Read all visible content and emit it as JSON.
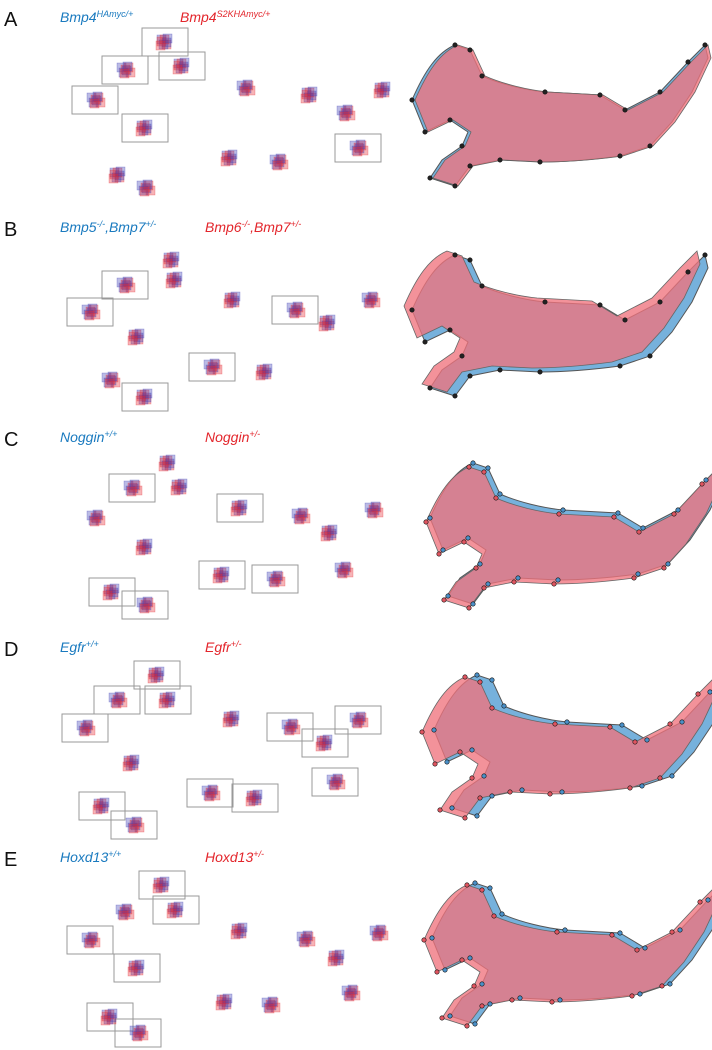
{
  "panels": [
    {
      "letter": "A",
      "blue_label": [
        {
          "text": "Bmp4",
          "sup": false
        },
        {
          "text": "HAmyc/+",
          "sup": true
        }
      ],
      "red_label": [
        {
          "text": "Bmp4",
          "sup": false
        },
        {
          "text": "S2KHAmyc/+",
          "sup": true
        }
      ]
    },
    {
      "letter": "B",
      "blue_label": [
        {
          "text": "Bmp5",
          "sup": false
        },
        {
          "text": "-/-",
          "sup": true
        },
        {
          "text": ",Bmp7",
          "sup": false
        },
        {
          "text": "+/-",
          "sup": true
        }
      ],
      "red_label": [
        {
          "text": "Bmp6",
          "sup": false
        },
        {
          "text": "-/-",
          "sup": true
        },
        {
          "text": ",Bmp7",
          "sup": false
        },
        {
          "text": "+/-",
          "sup": true
        }
      ]
    },
    {
      "letter": "C",
      "blue_label": [
        {
          "text": "Noggin",
          "sup": false
        },
        {
          "text": "+/+",
          "sup": true
        }
      ],
      "red_label": [
        {
          "text": "Noggin",
          "sup": false
        },
        {
          "text": "+/-",
          "sup": true
        }
      ]
    },
    {
      "letter": "D",
      "blue_label": [
        {
          "text": "Egfr",
          "sup": false
        },
        {
          "text": "+/+",
          "sup": true
        }
      ],
      "red_label": [
        {
          "text": "Egfr",
          "sup": false
        },
        {
          "text": "+/-",
          "sup": true
        }
      ]
    },
    {
      "letter": "E",
      "blue_label": [
        {
          "text": "Hoxd13",
          "sup": false
        },
        {
          "text": "+/+",
          "sup": true
        }
      ],
      "red_label": [
        {
          "text": "Hoxd13",
          "sup": false
        },
        {
          "text": "+/-",
          "sup": true
        }
      ]
    }
  ]
}
